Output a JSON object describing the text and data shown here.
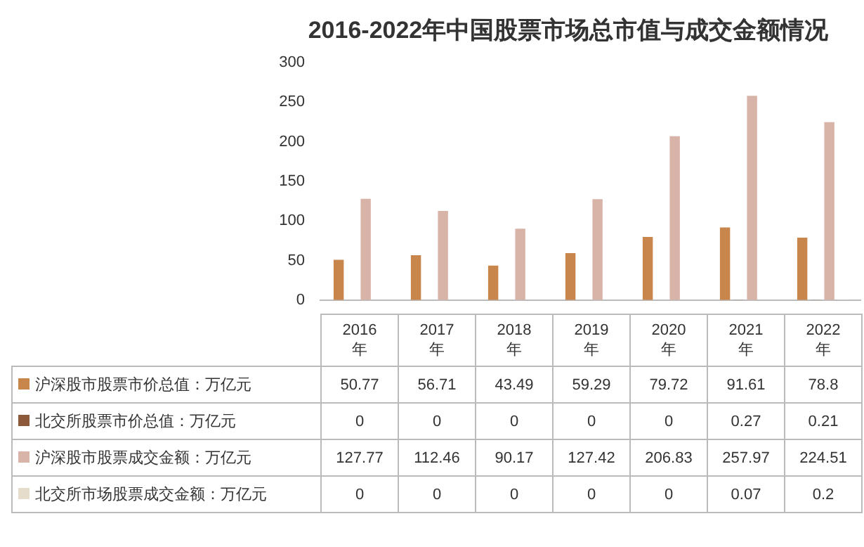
{
  "chart_data": {
    "type": "bar",
    "title": "2016-2022年中国股票市场总市值与成交金额情况",
    "categories": [
      "2016年",
      "2017年",
      "2018年",
      "2019年",
      "2020年",
      "2021年",
      "2022年"
    ],
    "series": [
      {
        "name": "沪深股市股票市价总值：万亿元",
        "color": "#c8864c",
        "values": [
          50.77,
          56.71,
          43.49,
          59.29,
          79.72,
          91.61,
          78.8
        ]
      },
      {
        "name": "北交所股票市价总值：万亿元",
        "color": "#8c5a3a",
        "values": [
          0,
          0,
          0,
          0,
          0,
          0.27,
          0.21
        ]
      },
      {
        "name": "沪深股市股票成交金额：万亿元",
        "color": "#d8b4a8",
        "values": [
          127.77,
          112.46,
          90.17,
          127.42,
          206.83,
          257.97,
          224.51
        ]
      },
      {
        "name": "北交所市场股票成交金额：万亿元",
        "color": "#e6dccb",
        "values": [
          0,
          0,
          0,
          0,
          0,
          0.07,
          0.2
        ]
      }
    ],
    "ylim": [
      0,
      300
    ],
    "yticks": [
      0,
      50,
      100,
      150,
      200,
      250,
      300
    ],
    "grid": false,
    "legend": "bottom",
    "data_labels": true
  }
}
